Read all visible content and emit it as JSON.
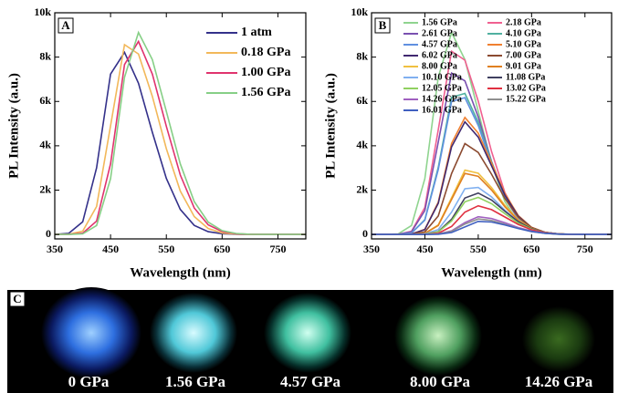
{
  "chart_data": [
    {
      "type": "line",
      "panel_label": "A",
      "xlabel": "Wavelength (nm)",
      "ylabel": "PL Intensity (a.u.)",
      "legend": "upper right",
      "x": [
        350,
        375,
        400,
        425,
        450,
        475,
        500,
        525,
        550,
        575,
        600,
        625,
        650,
        675,
        700,
        725,
        750,
        775,
        800
      ],
      "xlim": [
        350,
        800
      ],
      "xticks": [
        350,
        450,
        550,
        650,
        750
      ],
      "ylim": [
        -200,
        10000
      ],
      "yticks": [
        0,
        {
          "value": 2000,
          "label": "2k"
        },
        {
          "value": 4000,
          "label": "4k"
        },
        {
          "value": 6000,
          "label": "6k"
        },
        {
          "value": 8000,
          "label": "8k"
        },
        {
          "value": 10000,
          "label": "10k"
        }
      ],
      "series": [
        {
          "name": "1 atm",
          "color": "#34318a",
          "values": [
            0,
            50,
            568,
            3006,
            7231,
            8216,
            6822,
            4609,
            2530,
            1127,
            409,
            125,
            33,
            8,
            0,
            0,
            0,
            0,
            0
          ]
        },
        {
          "name": "0.18 GPa",
          "color": "#f2b85a",
          "values": [
            0,
            9,
            148,
            1262,
            4898,
            8561,
            8143,
            6229,
            3872,
            1958,
            809,
            270,
            70,
            17,
            0,
            0,
            0,
            0,
            0
          ]
        },
        {
          "name": "1.00 GPa",
          "color": "#e0336e",
          "values": [
            0,
            0,
            53,
            602,
            3186,
            7664,
            8708,
            7230,
            4885,
            2682,
            1195,
            434,
            133,
            35,
            9,
            0,
            0,
            0,
            0
          ]
        },
        {
          "name": "1.56 GPa",
          "color": "#86cf86",
          "values": [
            0,
            0,
            27,
            403,
            2516,
            7091,
            9113,
            7887,
            5554,
            3184,
            1482,
            558,
            174,
            46,
            9,
            0,
            0,
            0,
            0
          ]
        }
      ]
    },
    {
      "type": "line",
      "panel_label": "B",
      "xlabel": "Wavelength (nm)",
      "ylabel": "PL Intensity (a.u.)",
      "legend": "upper right",
      "x": [
        350,
        375,
        400,
        425,
        450,
        475,
        500,
        525,
        550,
        575,
        600,
        625,
        650,
        675,
        700,
        725,
        750,
        775,
        800
      ],
      "xlim": [
        350,
        800
      ],
      "xticks": [
        350,
        450,
        550,
        650,
        750
      ],
      "ylim": [
        -200,
        10000
      ],
      "yticks": [
        0,
        {
          "value": 2000,
          "label": "2k"
        },
        {
          "value": 4000,
          "label": "4k"
        },
        {
          "value": 6000,
          "label": "6k"
        },
        {
          "value": 8000,
          "label": "8k"
        },
        {
          "value": 10000,
          "label": "10k"
        }
      ],
      "series": [
        {
          "name": "1.56 GPa",
          "color": "#8fd48f",
          "values": [
            0,
            0,
            27,
            403,
            2516,
            7091,
            9113,
            7887,
            5554,
            3184,
            1482,
            558,
            174,
            46,
            9,
            0,
            0,
            0,
            0
          ]
        },
        {
          "name": "2.18 GPa",
          "color": "#f06090",
          "values": [
            0,
            0,
            8,
            143,
            1218,
            4729,
            8266,
            7862,
            6014,
            3738,
            1890,
            781,
            260,
            67,
            17,
            0,
            0,
            0,
            0
          ]
        },
        {
          "name": "2.61 GPa",
          "color": "#7a50b0",
          "values": [
            0,
            0,
            7,
            126,
            1073,
            4166,
            7282,
            6926,
            5298,
            3293,
            1665,
            688,
            229,
            59,
            15,
            0,
            0,
            0,
            0
          ]
        },
        {
          "name": "4.10 GPa",
          "color": "#50b0a0",
          "values": [
            0,
            0,
            0,
            66,
            667,
            3023,
            6191,
            6362,
            5069,
            3280,
            1729,
            739,
            257,
            73,
            20,
            3,
            0,
            0,
            0
          ]
        },
        {
          "name": "4.57 GPa",
          "color": "#6090e0",
          "values": [
            0,
            0,
            0,
            64,
            646,
            2931,
            6003,
            6170,
            4915,
            3181,
            1677,
            717,
            250,
            70,
            19,
            3,
            0,
            0,
            0
          ]
        },
        {
          "name": "5.10 GPa",
          "color": "#f08030",
          "values": [
            0,
            0,
            0,
            16,
            233,
            1458,
            4108,
            5279,
            4569,
            3217,
            1844,
            859,
            323,
            101,
            27,
            5,
            0,
            0,
            0
          ]
        },
        {
          "name": "6.02 GPa",
          "color": "#402870",
          "values": [
            0,
            0,
            0,
            15,
            224,
            1403,
            3953,
            5080,
            4396,
            3096,
            1775,
            826,
            311,
            97,
            26,
            5,
            0,
            0,
            0
          ]
        },
        {
          "name": "7.00 GPa",
          "color": "#8b4a30",
          "values": [
            0,
            0,
            0,
            8,
            115,
            832,
            2751,
            4100,
            3698,
            2714,
            1620,
            783,
            312,
            98,
            25,
            4,
            0,
            0,
            0
          ]
        },
        {
          "name": "8.00 GPa",
          "color": "#f0c040",
          "values": [
            0,
            0,
            0,
            3,
            50,
            428,
            1661,
            2903,
            2761,
            2112,
            1313,
            664,
            274,
            91,
            24,
            6,
            0,
            0,
            0
          ]
        },
        {
          "name": "9.01 GPa",
          "color": "#e08020",
          "values": [
            0,
            0,
            0,
            3,
            48,
            406,
            1576,
            2755,
            2621,
            2005,
            1246,
            630,
            260,
            87,
            22,
            6,
            0,
            0,
            0
          ]
        },
        {
          "name": "10.10 GPa",
          "color": "#80b0f0",
          "values": [
            0,
            0,
            0,
            0,
            22,
            222,
            1008,
            2064,
            2121,
            1690,
            1093,
            576,
            246,
            86,
            24,
            7,
            0,
            0,
            0
          ]
        },
        {
          "name": "11.08 GPa",
          "color": "#404060",
          "values": [
            0,
            0,
            0,
            0,
            11,
            129,
            684,
            1645,
            1870,
            1552,
            1049,
            576,
            257,
            93,
            29,
            8,
            2,
            0,
            0
          ]
        },
        {
          "name": "12.05 GPa",
          "color": "#90d060",
          "values": [
            0,
            0,
            0,
            0,
            10,
            116,
            612,
            1472,
            1673,
            1389,
            938,
            515,
            230,
            83,
            26,
            7,
            2,
            0,
            0
          ]
        },
        {
          "name": "13.02 GPa",
          "color": "#e03040",
          "values": [
            0,
            0,
            0,
            0,
            4,
            57,
            358,
            1008,
            1295,
            1121,
            789,
            452,
            211,
            79,
            25,
            7,
            1,
            0,
            0
          ]
        },
        {
          "name": "14.26 GPa",
          "color": "#a060c0",
          "values": [
            0,
            0,
            0,
            0,
            2,
            22,
            162,
            537,
            800,
            722,
            530,
            316,
            153,
            61,
            19,
            5,
            1,
            0,
            0
          ]
        },
        {
          "name": "15.22 GPa",
          "color": "#909090",
          "values": [
            0,
            0,
            0,
            0,
            1,
            20,
            142,
            470,
            700,
            631,
            463,
            277,
            134,
            53,
            17,
            4,
            1,
            0,
            0
          ]
        },
        {
          "name": "16.01 GPa",
          "color": "#4060c0",
          "values": [
            0,
            0,
            0,
            0,
            1,
            10,
            87,
            338,
            590,
            562,
            430,
            267,
            135,
            56,
            19,
            5,
            1,
            0,
            0
          ]
        }
      ]
    }
  ],
  "photo_panel": {
    "label": "C",
    "captions": [
      "0 GPa",
      "1.56 GPa",
      "4.57 GPa",
      "8.00 GPa",
      "14.26 GPa"
    ]
  }
}
